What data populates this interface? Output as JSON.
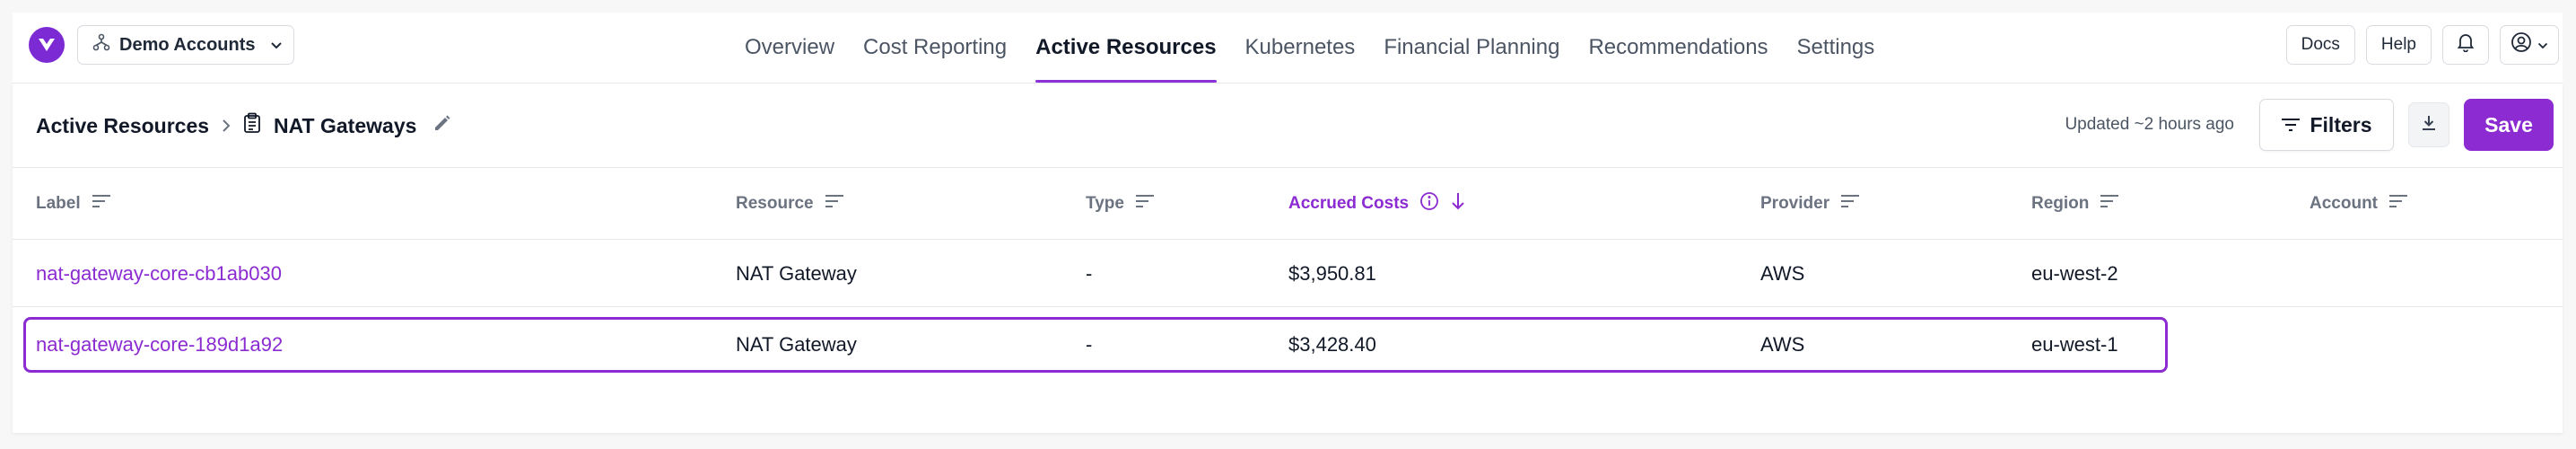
{
  "nav": {
    "account_switcher": "Demo Accounts",
    "tabs": [
      {
        "label": "Overview"
      },
      {
        "label": "Cost Reporting"
      },
      {
        "label": "Active Resources",
        "active": true
      },
      {
        "label": "Kubernetes"
      },
      {
        "label": "Financial Planning"
      },
      {
        "label": "Recommendations"
      },
      {
        "label": "Settings"
      }
    ],
    "docs_label": "Docs",
    "help_label": "Help"
  },
  "page": {
    "breadcrumb_root": "Active Resources",
    "breadcrumb_current": "NAT Gateways",
    "updated_text": "Updated ~2 hours ago",
    "filters_label": "Filters",
    "save_label": "Save"
  },
  "table": {
    "columns": [
      {
        "label": "Label"
      },
      {
        "label": "Resource"
      },
      {
        "label": "Type"
      },
      {
        "label": "Accrued Costs",
        "sorted": "desc"
      },
      {
        "label": "Provider"
      },
      {
        "label": "Region"
      },
      {
        "label": "Account"
      }
    ],
    "rows": [
      {
        "label": "nat-gateway-core-cb1ab030",
        "resource": "NAT Gateway",
        "type": "-",
        "accrued_costs": "$3,950.81",
        "provider": "AWS",
        "region": "eu-west-2",
        "account": ""
      },
      {
        "label": "nat-gateway-core-189d1a92",
        "resource": "NAT Gateway",
        "type": "-",
        "accrued_costs": "$3,428.40",
        "provider": "AWS",
        "region": "eu-west-1",
        "account": "",
        "highlighted": true
      }
    ]
  },
  "colors": {
    "accent": "#8b2bd1",
    "brand_logo": "#7c2ad4"
  }
}
